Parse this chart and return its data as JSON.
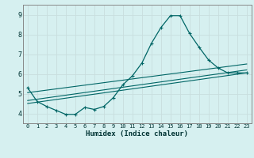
{
  "xlabel": "Humidex (Indice chaleur)",
  "bg_color": "#d6f0f0",
  "grid_color": "#c8dede",
  "line_color": "#006666",
  "spine_color": "#888888",
  "xlim": [
    -0.5,
    23.5
  ],
  "ylim": [
    3.5,
    9.5
  ],
  "xticks": [
    0,
    1,
    2,
    3,
    4,
    5,
    6,
    7,
    8,
    9,
    10,
    11,
    12,
    13,
    14,
    15,
    16,
    17,
    18,
    19,
    20,
    21,
    22,
    23
  ],
  "yticks": [
    4,
    5,
    6,
    7,
    8,
    9
  ],
  "series_main": {
    "x": [
      0,
      1,
      2,
      3,
      4,
      5,
      6,
      7,
      8,
      9,
      10,
      11,
      12,
      13,
      14,
      15,
      16,
      17,
      18,
      19,
      20,
      21,
      22,
      23
    ],
    "y": [
      5.3,
      4.6,
      4.35,
      4.15,
      3.95,
      3.95,
      4.3,
      4.2,
      4.35,
      4.8,
      5.45,
      5.9,
      6.55,
      7.55,
      8.35,
      8.95,
      8.95,
      8.05,
      7.35,
      6.7,
      6.3,
      6.05,
      6.05,
      6.05
    ]
  },
  "series_lines": [
    {
      "x": [
        0,
        23
      ],
      "y": [
        4.5,
        6.05
      ]
    },
    {
      "x": [
        0,
        23
      ],
      "y": [
        4.65,
        6.2
      ]
    },
    {
      "x": [
        0,
        23
      ],
      "y": [
        5.05,
        6.5
      ]
    }
  ]
}
